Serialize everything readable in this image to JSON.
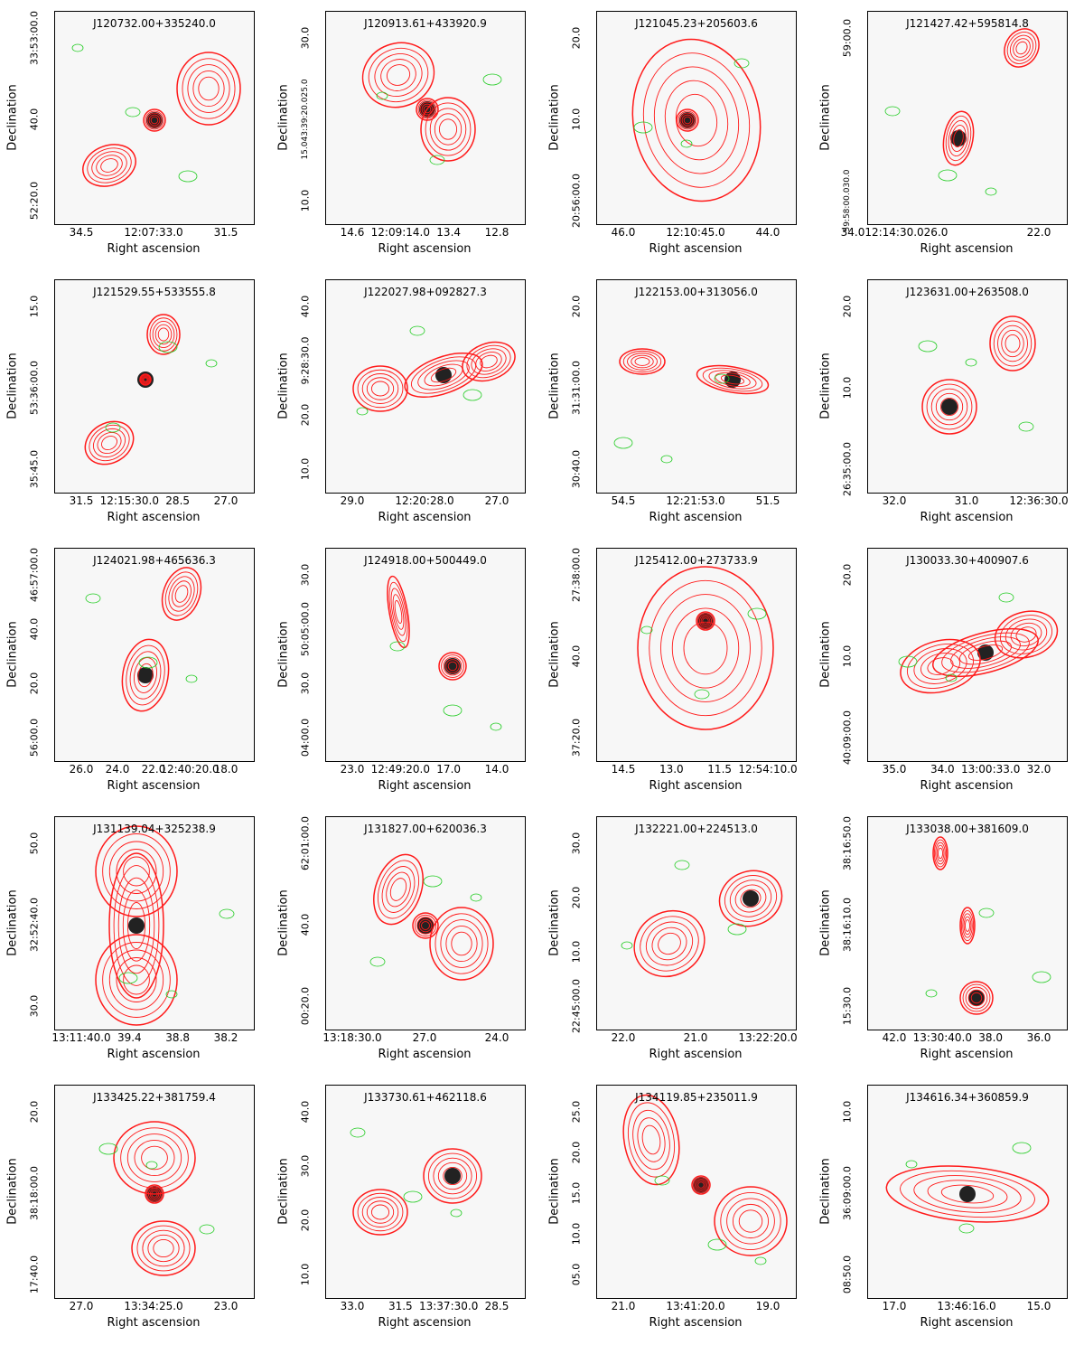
{
  "colors": {
    "radio_contour": "#ff1a1a",
    "optical_contour": "#22cc22",
    "background": "#f7f7f7"
  },
  "labels": {
    "xlabel": "Right ascension",
    "ylabel": "Declination"
  },
  "panels": [
    {
      "title": "J120732.00+335240.0",
      "xticks": [
        "34.5",
        "12:07:33.0",
        "31.5"
      ],
      "yticks": [
        "52:20.0",
        "40.0",
        "33:53:00.0"
      ]
    },
    {
      "title": "J120913.61+433920.9",
      "xticks": [
        "14.6",
        "12:09:14.0",
        "13.4",
        "12.8"
      ],
      "yticks": [
        "10.0",
        "15.043:39:20.025.0",
        "30.0"
      ]
    },
    {
      "title": "J121045.23+205603.6",
      "xticks": [
        "46.0",
        "12:10:45.0",
        "44.0"
      ],
      "yticks": [
        "20:56:00.0",
        "10.0",
        "20.0"
      ]
    },
    {
      "title": "J121427.42+595814.8",
      "xticks": [
        "34.012:14:30.026.0",
        "22.0"
      ],
      "yticks": [
        "59:58:00.030.0",
        "59:00.0"
      ]
    },
    {
      "title": "J121529.55+533555.8",
      "xticks": [
        "31.5",
        "12:15:30.0",
        "28.5",
        "27.0"
      ],
      "yticks": [
        "35:45.0",
        "53:36:00.0",
        "15.0"
      ]
    },
    {
      "title": "J122027.98+092827.3",
      "xticks": [
        "29.0",
        "12:20:28.0",
        "27.0"
      ],
      "yticks": [
        "10.0",
        "20.0",
        "9:28:30.0",
        "40.0"
      ]
    },
    {
      "title": "J122153.00+313056.0",
      "xticks": [
        "54.5",
        "12:21:53.0",
        "51.5"
      ],
      "yticks": [
        "30:40.0",
        "31:31:00.0",
        "20.0"
      ]
    },
    {
      "title": "J123631.00+263508.0",
      "xticks": [
        "32.0",
        "31.0",
        "12:36:30.0"
      ],
      "yticks": [
        "26:35:00.0",
        "10.0",
        "20.0"
      ]
    },
    {
      "title": "J124021.98+465636.3",
      "xticks": [
        "26.0",
        "24.0",
        "22.0",
        "12:40:20.0",
        "18.0"
      ],
      "yticks": [
        "56:00.0",
        "20.0",
        "40.0",
        "46:57:00.0"
      ]
    },
    {
      "title": "J124918.00+500449.0",
      "xticks": [
        "23.0",
        "12:49:20.0",
        "17.0",
        "14.0"
      ],
      "yticks": [
        "04:00.0",
        "30.0",
        "50:05:00.0",
        "30.0"
      ]
    },
    {
      "title": "J125412.00+273733.9",
      "xticks": [
        "14.5",
        "13.0",
        "11.5",
        "12:54:10.0"
      ],
      "yticks": [
        "37:20.0",
        "40.0",
        "27:38:00.0"
      ]
    },
    {
      "title": "J130033.30+400907.6",
      "xticks": [
        "35.0",
        "34.0",
        "13:00:33.0",
        "32.0"
      ],
      "yticks": [
        "40:09:00.0",
        "10.0",
        "20.0"
      ]
    },
    {
      "title": "J131139.04+325238.9",
      "xticks": [
        "13:11:40.0",
        "39.4",
        "38.8",
        "38.2"
      ],
      "yticks": [
        "30.0",
        "32:52:40.0",
        "50.0"
      ]
    },
    {
      "title": "J131827.00+620036.3",
      "xticks": [
        "13:18:30.0",
        "27.0",
        "24.0"
      ],
      "yticks": [
        "00:20.0",
        "40.0",
        "62:01:00.0"
      ]
    },
    {
      "title": "J132221.00+224513.0",
      "xticks": [
        "22.0",
        "21.0",
        "13:22:20.0"
      ],
      "yticks": [
        "22:45:00.0",
        "10.0",
        "20.0",
        "30.0"
      ]
    },
    {
      "title": "J133038.00+381609.0",
      "xticks": [
        "42.0",
        "13:30:40.0",
        "38.0",
        "36.0"
      ],
      "yticks": [
        "15:30.0",
        "38:16:10.0",
        "38:16:50.0"
      ]
    },
    {
      "title": "J133425.22+381759.4",
      "xticks": [
        "27.0",
        "13:34:25.0",
        "23.0"
      ],
      "yticks": [
        "17:40.0",
        "38:18:00.0",
        "20.0"
      ]
    },
    {
      "title": "J133730.61+462118.6",
      "xticks": [
        "33.0",
        "31.5",
        "13:37:30.0",
        "28.5"
      ],
      "yticks": [
        "10.0",
        "20.0",
        "30.0",
        "40.0"
      ]
    },
    {
      "title": "J134119.85+235011.9",
      "xticks": [
        "21.0",
        "13:41:20.0",
        "19.0"
      ],
      "yticks": [
        "05.0",
        "10.0",
        "15.0",
        "20.0",
        "25.0"
      ]
    },
    {
      "title": "J134616.34+360859.9",
      "xticks": [
        "17.0",
        "13:46:16.0",
        "15.0"
      ],
      "yticks": [
        "08:50.0",
        "36:09:00.0",
        "10.0"
      ]
    }
  ]
}
